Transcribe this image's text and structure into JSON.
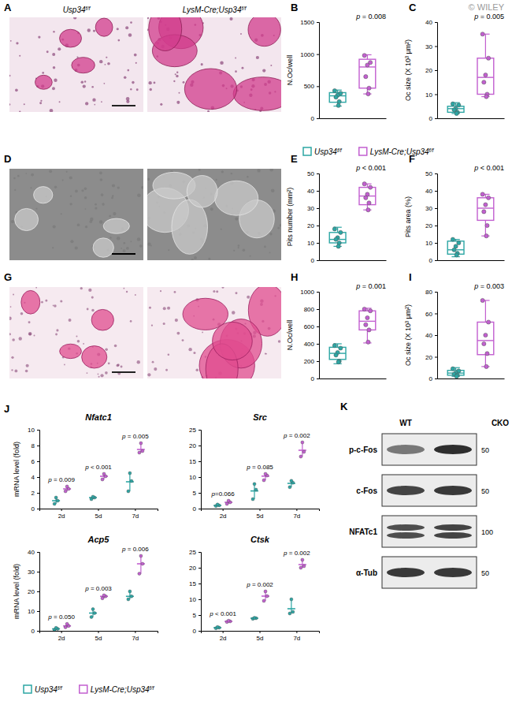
{
  "chart_data": [
    {
      "type": "box",
      "panel": "B",
      "ylabel": "N.Oc/well",
      "ylim": [
        0,
        1500
      ],
      "yticks": [
        0,
        500,
        1000,
        1500
      ],
      "tick_labels": "y",
      "annotation": "p = 0.008",
      "series": [
        {
          "color": "#2ca6a4",
          "points": [
            430,
            390,
            360,
            330,
            260,
            200
          ],
          "box": {
            "min": 190,
            "q1": 250,
            "median": 350,
            "q3": 400,
            "max": 440
          }
        },
        {
          "color": "#c25fd0",
          "points": [
            980,
            870,
            830,
            650,
            470,
            380
          ],
          "box": {
            "min": 380,
            "q1": 470,
            "median": 800,
            "q3": 920,
            "max": 990
          }
        }
      ]
    },
    {
      "type": "box",
      "panel": "C",
      "ylabel": "Oc size (X 10³ μm²)",
      "ylim": [
        0,
        40
      ],
      "yticks": [
        0,
        10,
        20,
        30,
        40
      ],
      "tick_labels": "y",
      "annotation": "p = 0.005",
      "series": [
        {
          "color": "#2ca6a4",
          "points": [
            6,
            5.5,
            4,
            3.5,
            2.5,
            2
          ],
          "box": {
            "min": 2,
            "q1": 2.5,
            "median": 4,
            "q3": 5,
            "max": 6.5
          }
        },
        {
          "color": "#c25fd0",
          "points": [
            35,
            25,
            18,
            15,
            10,
            9
          ],
          "box": {
            "min": 9,
            "q1": 10,
            "median": 17,
            "q3": 25,
            "max": 35
          }
        }
      ]
    },
    {
      "type": "box",
      "panel": "E",
      "ylabel": "Pits number (mm²)",
      "ylim": [
        0,
        50
      ],
      "yticks": [
        0,
        10,
        20,
        30,
        40,
        50
      ],
      "tick_labels": "y",
      "annotation": "p < 0.001",
      "series": [
        {
          "color": "#2ca6a4",
          "points": [
            18,
            16,
            13,
            12,
            10,
            8
          ],
          "box": {
            "min": 8,
            "q1": 10,
            "median": 12,
            "q3": 16,
            "max": 19
          }
        },
        {
          "color": "#c25fd0",
          "points": [
            44,
            42,
            38,
            36,
            33,
            29
          ],
          "box": {
            "min": 29,
            "q1": 32,
            "median": 37,
            "q3": 42,
            "max": 44
          }
        }
      ]
    },
    {
      "type": "box",
      "panel": "F",
      "ylabel": "Pits area (%)",
      "ylim": [
        0,
        50
      ],
      "yticks": [
        0,
        10,
        20,
        30,
        40,
        50
      ],
      "tick_labels": "y",
      "annotation": "p < 0.001",
      "series": [
        {
          "color": "#2ca6a4",
          "points": [
            12,
            10,
            8,
            6,
            4,
            3
          ],
          "box": {
            "min": 2,
            "q1": 3.5,
            "median": 6,
            "q3": 11,
            "max": 12
          }
        },
        {
          "color": "#c25fd0",
          "points": [
            38,
            36,
            32,
            28,
            20,
            14
          ],
          "box": {
            "min": 14,
            "q1": 23,
            "median": 30,
            "q3": 36,
            "max": 38
          }
        }
      ]
    },
    {
      "type": "box",
      "panel": "H",
      "ylabel": "N.Oc/well",
      "ylim": [
        0,
        1000
      ],
      "yticks": [
        0,
        200,
        400,
        600,
        800,
        1000
      ],
      "tick_labels": "y",
      "annotation": "p = 0.001",
      "series": [
        {
          "color": "#2ca6a4",
          "points": [
            380,
            350,
            300,
            270,
            200,
            190
          ],
          "box": {
            "min": 170,
            "q1": 220,
            "median": 290,
            "q3": 360,
            "max": 400
          }
        },
        {
          "color": "#c25fd0",
          "points": [
            800,
            780,
            700,
            620,
            560,
            420
          ],
          "box": {
            "min": 410,
            "q1": 560,
            "median": 660,
            "q3": 780,
            "max": 810
          }
        }
      ]
    },
    {
      "type": "box",
      "panel": "I",
      "ylabel": "Oc size (X 10³ μm²)",
      "ylim": [
        0,
        80
      ],
      "yticks": [
        0,
        20,
        40,
        60,
        80
      ],
      "tick_labels": "y",
      "annotation": "p = 0.003",
      "series": [
        {
          "color": "#2ca6a4",
          "points": [
            9,
            7,
            5,
            4,
            3,
            2
          ],
          "box": {
            "min": 2,
            "q1": 3,
            "median": 5,
            "q3": 7.5,
            "max": 10
          }
        },
        {
          "color": "#c25fd0",
          "points": [
            72,
            52,
            40,
            32,
            23,
            11
          ],
          "box": {
            "min": 11,
            "q1": 22,
            "median": 35,
            "q3": 52,
            "max": 72
          }
        }
      ]
    },
    {
      "type": "dot",
      "panel": "J",
      "title": "Nfatc1",
      "ylabel": "mRNA level (fold)",
      "categories": [
        "2d",
        "5d",
        "7d"
      ],
      "ylim": [
        0,
        10
      ],
      "yticks": [
        0,
        2,
        4,
        6,
        8,
        10
      ],
      "annotations": [
        "p = 0.009",
        "p < 0.001",
        "p = 0.005"
      ],
      "series": [
        {
          "color": "#2ca6a4",
          "values": [
            1.0,
            1.4,
            3.4
          ],
          "range": [
            [
              0.6,
              1.4
            ],
            [
              1.2,
              1.5
            ],
            [
              2.2,
              4.5
            ]
          ],
          "points": [
            [
              0.6,
              1.0,
              1.4
            ],
            [
              1.2,
              1.4,
              1.5
            ],
            [
              2.2,
              3.5,
              4.5
            ]
          ]
        },
        {
          "color": "#c25fd0",
          "values": [
            2.5,
            4.1,
            7.5
          ],
          "range": [
            [
              2.2,
              2.8
            ],
            [
              3.7,
              4.4
            ],
            [
              7.1,
              8.3
            ]
          ],
          "points": [
            [
              2.2,
              2.5,
              2.8
            ],
            [
              3.7,
              4.1,
              4.4
            ],
            [
              7.1,
              7.3,
              8.3
            ]
          ]
        }
      ]
    },
    {
      "type": "dot",
      "title": "Src",
      "categories": [
        "2d",
        "5d",
        "7d"
      ],
      "ylim": [
        0,
        25
      ],
      "yticks": [
        0,
        5,
        10,
        15,
        20,
        25
      ],
      "annotations": [
        "p=0.066",
        "p = 0.085",
        "p = 0.002"
      ],
      "series": [
        {
          "color": "#2ca6a4",
          "values": [
            1.0,
            5.6,
            8.0
          ],
          "range": [
            [
              0.8,
              1.3
            ],
            [
              3,
              7.8
            ],
            [
              6.8,
              8.8
            ]
          ],
          "points": [
            [
              0.8,
              1.0,
              1.3
            ],
            [
              3,
              6,
              7.8
            ],
            [
              6.8,
              8.2,
              8.8
            ]
          ]
        },
        {
          "color": "#c25fd0",
          "values": [
            2.0,
            10.3,
            18.5
          ],
          "range": [
            [
              1.5,
              2.5
            ],
            [
              9,
              11
            ],
            [
              16.5,
              21
            ]
          ],
          "points": [
            [
              1.5,
              2,
              2.5
            ],
            [
              9,
              10.5,
              11
            ],
            [
              16.5,
              18,
              21
            ]
          ]
        }
      ]
    },
    {
      "type": "dot",
      "title": "Acp5",
      "ylabel": "mRNA level (fold)",
      "categories": [
        "2d",
        "5d",
        "7d"
      ],
      "ylim": [
        0,
        40
      ],
      "yticks": [
        0,
        10,
        20,
        30,
        40
      ],
      "annotations": [
        "p = 0.050",
        "p = 0.003",
        "p = 0.006"
      ],
      "series": [
        {
          "color": "#2ca6a4",
          "values": [
            1.0,
            9.0,
            17.5
          ],
          "range": [
            [
              0.5,
              1.5
            ],
            [
              7,
              11
            ],
            [
              16,
              20
            ]
          ],
          "points": [
            [
              0.5,
              1,
              1.5
            ],
            [
              7,
              9,
              11
            ],
            [
              16,
              17.5,
              20
            ]
          ]
        },
        {
          "color": "#c25fd0",
          "values": [
            2.5,
            17.5,
            34
          ],
          "range": [
            [
              1.8,
              3.5
            ],
            [
              16.5,
              18
            ],
            [
              29,
              38
            ]
          ],
          "points": [
            [
              1.8,
              2.5,
              3.5
            ],
            [
              16.5,
              17.5,
              18
            ],
            [
              29,
              34,
              38
            ]
          ]
        }
      ]
    },
    {
      "type": "dot",
      "title": "Ctsk",
      "categories": [
        "2d",
        "5d",
        "7d"
      ],
      "ylim": [
        0,
        25
      ],
      "yticks": [
        0,
        5,
        10,
        15,
        20,
        25
      ],
      "annotations": [
        "p < 0.001",
        "p = 0.002",
        "p = 0.002"
      ],
      "series": [
        {
          "color": "#2ca6a4",
          "values": [
            1.0,
            4.0,
            7.0
          ],
          "range": [
            [
              0.8,
              1.2
            ],
            [
              3.8,
              4.1
            ],
            [
              5.5,
              10
            ]
          ],
          "points": [
            [
              0.8,
              1,
              1.2
            ],
            [
              3.8,
              4,
              4.1
            ],
            [
              5.5,
              6,
              10
            ]
          ]
        },
        {
          "color": "#c25fd0",
          "values": [
            3.0,
            11.0,
            21.0
          ],
          "range": [
            [
              2.8,
              3.2
            ],
            [
              9.5,
              12.5
            ],
            [
              20,
              22.5
            ]
          ],
          "points": [
            [
              2.8,
              3,
              3.2
            ],
            [
              9.5,
              11,
              12.5
            ],
            [
              20,
              20.5,
              22.5
            ]
          ]
        }
      ]
    }
  ],
  "image_panels": [
    "A",
    "D",
    "G"
  ],
  "image_labels": [
    {
      "main": "Usp34",
      "sup": "f/f"
    },
    {
      "main": "LysM-Cre;Usp34",
      "sup": "f/f"
    }
  ],
  "legend": [
    {
      "main": "Usp34",
      "sup": "f/f",
      "color": "#2ca6a4"
    },
    {
      "main": "LysM-Cre;Usp34",
      "sup": "f/f",
      "color": "#c25fd0"
    }
  ],
  "blot": {
    "panel": "K",
    "lanes": [
      "WT",
      "CKO"
    ],
    "rows": [
      {
        "label": "p-c-Fos",
        "marker": 50
      },
      {
        "label": "c-Fos",
        "marker": 50
      },
      {
        "label": "NFATc1",
        "marker": 100
      },
      {
        "label": "α-Tub",
        "marker": 50
      }
    ]
  },
  "watermark": "© WILEY"
}
